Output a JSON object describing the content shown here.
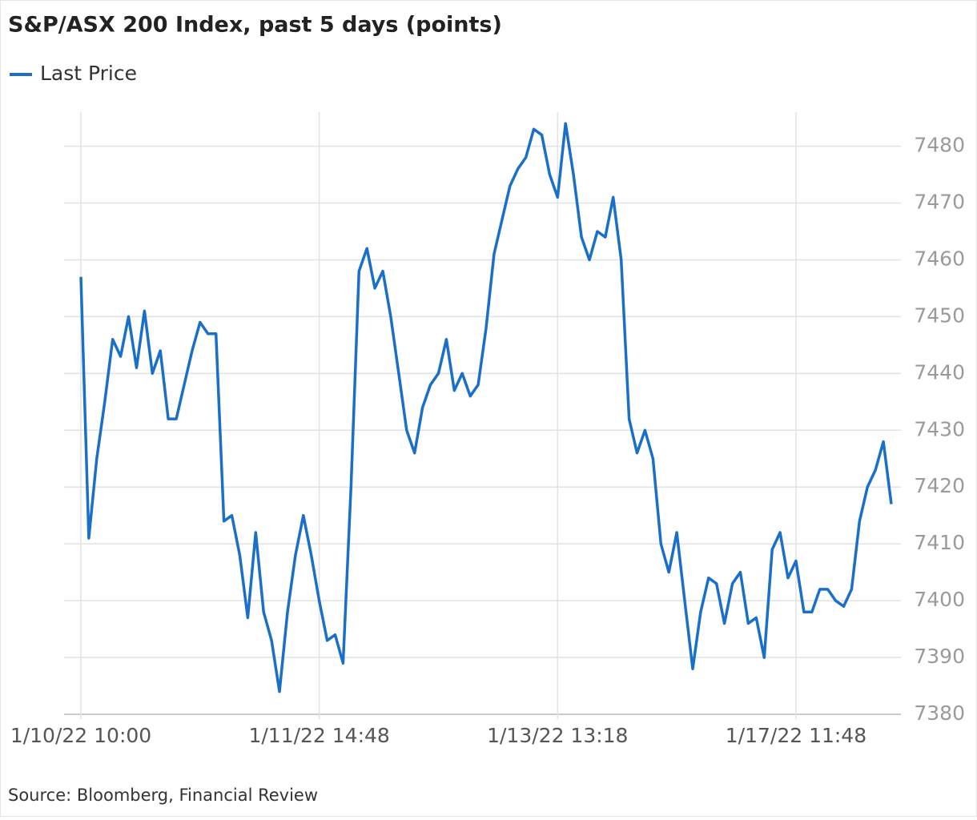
{
  "chart_data": {
    "type": "line",
    "title": "S&P/ASX 200 Index, past 5 days (points)",
    "source": "Source: Bloomberg, Financial Review",
    "legend": "top-left",
    "grid": true,
    "categories": [
      "1/10/22 10:00",
      null,
      null,
      null,
      null,
      null,
      null,
      null,
      null,
      null,
      null,
      null,
      null,
      null,
      null,
      null,
      null,
      null,
      null,
      null,
      null,
      null,
      null,
      null,
      null,
      null,
      null,
      null,
      null,
      null,
      "1/11/22 14:48",
      null,
      null,
      null,
      null,
      null,
      null,
      null,
      null,
      null,
      null,
      null,
      null,
      null,
      null,
      null,
      null,
      null,
      null,
      null,
      null,
      null,
      null,
      null,
      null,
      null,
      null,
      null,
      null,
      null,
      "1/13/22 13:18",
      null,
      null,
      null,
      null,
      null,
      null,
      null,
      null,
      null,
      null,
      null,
      null,
      null,
      null,
      null,
      null,
      null,
      null,
      null,
      null,
      null,
      null,
      null,
      null,
      null,
      null,
      null,
      null,
      null,
      "1/17/22 11:48",
      null,
      null,
      null,
      null,
      null,
      null,
      null,
      null,
      null,
      null,
      null,
      null
    ],
    "series": [
      {
        "name": "Last Price",
        "color": "#1a6fc9",
        "values": [
          7457,
          7411,
          7425,
          7435,
          7446,
          7443,
          7450,
          7441,
          7451,
          7440,
          7444,
          7432,
          7432,
          7438,
          7444,
          7449,
          7447,
          7447,
          7414,
          7415,
          7408,
          7397,
          7412,
          7398,
          7393,
          7384,
          7398,
          7408,
          7415,
          7408,
          7400,
          7393,
          7394,
          7389,
          7420,
          7458,
          7462,
          7455,
          7458,
          7450,
          7440,
          7430,
          7426,
          7434,
          7438,
          7440,
          7446,
          7437,
          7440,
          7436,
          7438,
          7448,
          7461,
          7467,
          7473,
          7476,
          7478,
          7483,
          7482,
          7475,
          7471,
          7484,
          7475,
          7464,
          7460,
          7465,
          7464,
          7471,
          7460,
          7432,
          7426,
          7430,
          7425,
          7410,
          7405,
          7412,
          7400,
          7388,
          7398,
          7404,
          7403,
          7396,
          7403,
          7405,
          7396,
          7397,
          7390,
          7409,
          7412,
          7404,
          7407,
          7398,
          7398,
          7402,
          7402,
          7400,
          7399,
          7402,
          7414,
          7420,
          7423,
          7428,
          7417
        ]
      }
    ],
    "ylim": [
      7380,
      7486
    ],
    "yticks": [
      7380,
      7390,
      7400,
      7410,
      7420,
      7430,
      7440,
      7450,
      7460,
      7470,
      7480
    ]
  }
}
